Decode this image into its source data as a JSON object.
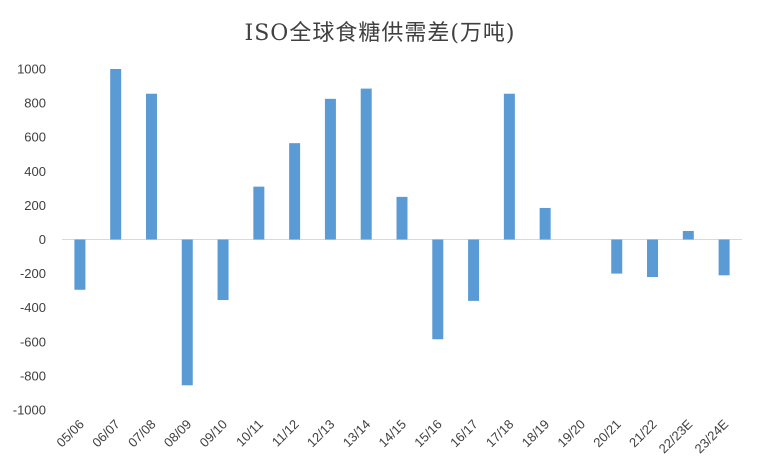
{
  "chart_data": {
    "type": "bar",
    "title": "ISO全球食糖供需差(万吨)",
    "xlabel": "",
    "ylabel": "",
    "ylim": [
      -1000,
      1000
    ],
    "yticks": [
      1000,
      800,
      600,
      400,
      200,
      0,
      -200,
      -400,
      -600,
      -800,
      -1000
    ],
    "grid": false,
    "legend": "none",
    "bar_color": "#5b9bd5",
    "categories": [
      "05/06",
      "06/07",
      "07/08",
      "08/09",
      "09/10",
      "10/11",
      "11/12",
      "12/13",
      "13/14",
      "14/15",
      "15/16",
      "16/17",
      "17/18",
      "18/19",
      "19/20",
      "20/21",
      "21/22",
      "22/23E",
      "23/24E"
    ],
    "values": [
      -295,
      1000,
      855,
      -855,
      -355,
      310,
      565,
      825,
      885,
      250,
      -585,
      -360,
      855,
      185,
      0,
      -200,
      -220,
      50,
      -210
    ]
  }
}
